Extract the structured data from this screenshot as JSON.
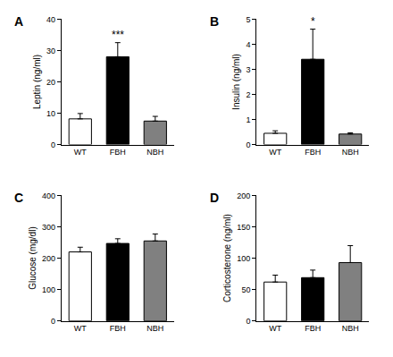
{
  "chart_data": [
    {
      "type": "bar",
      "title": "A",
      "y_label": "Leptin (ng/ml)",
      "categories": [
        "WT",
        "FBH",
        "NBH"
      ],
      "values": [
        8.2,
        28.0,
        7.5
      ],
      "errors": [
        1.7,
        4.5,
        1.5
      ],
      "colors": [
        "#ffffff",
        "#000000",
        "#808080"
      ],
      "ylim": [
        0,
        40
      ],
      "yticks": [
        0,
        10,
        20,
        30,
        40
      ],
      "grid": false,
      "annotations": [
        {
          "category": "FBH",
          "text": "***"
        }
      ]
    },
    {
      "type": "bar",
      "title": "B",
      "y_label": "Insulin (ng/ml)",
      "categories": [
        "WT",
        "FBH",
        "NBH"
      ],
      "values": [
        0.45,
        3.4,
        0.42
      ],
      "errors": [
        0.1,
        1.2,
        0.05
      ],
      "colors": [
        "#ffffff",
        "#000000",
        "#808080"
      ],
      "ylim": [
        0,
        5
      ],
      "yticks": [
        0,
        1,
        2,
        3,
        4,
        5
      ],
      "grid": false,
      "annotations": [
        {
          "category": "FBH",
          "text": "*"
        }
      ]
    },
    {
      "type": "bar",
      "title": "C",
      "y_label": "Glucose (mg/dl)",
      "categories": [
        "WT",
        "FBH",
        "NBH"
      ],
      "values": [
        220,
        247,
        255
      ],
      "errors": [
        15,
        15,
        22
      ],
      "colors": [
        "#ffffff",
        "#000000",
        "#808080"
      ],
      "ylim": [
        0,
        400
      ],
      "yticks": [
        0,
        100,
        200,
        300,
        400
      ],
      "grid": false
    },
    {
      "type": "bar",
      "title": "D",
      "y_label": "Corticosterone (ng/ml)",
      "categories": [
        "WT",
        "FBH",
        "NBH"
      ],
      "values": [
        62,
        69,
        93
      ],
      "errors": [
        11,
        12,
        27
      ],
      "colors": [
        "#ffffff",
        "#000000",
        "#808080"
      ],
      "ylim": [
        0,
        200
      ],
      "yticks": [
        0,
        50,
        100,
        150,
        200
      ],
      "grid": false
    }
  ]
}
